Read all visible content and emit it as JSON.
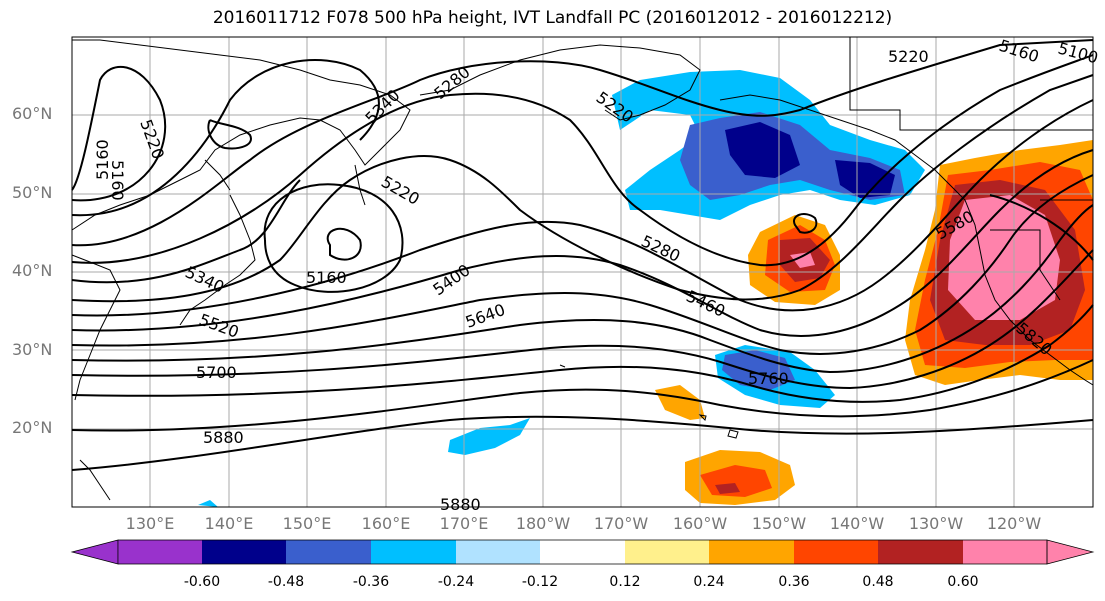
{
  "title": "2016011712 F078 500 hPa height, IVT Landfall PC (2016012012 - 2016012212)",
  "lat_labels": [
    "60°N",
    "50°N",
    "40°N",
    "30°N",
    "20°N"
  ],
  "lon_labels": [
    "130°E",
    "140°E",
    "150°E",
    "160°E",
    "170°E",
    "180°W",
    "170°W",
    "160°W",
    "150°W",
    "140°W",
    "130°W",
    "120°W"
  ],
  "contour_labels": [
    "5220",
    "5160",
    "5340",
    "5280",
    "5220",
    "5160",
    "5220",
    "5280",
    "5460",
    "5400",
    "5640",
    "5520",
    "5340",
    "5700",
    "5880",
    "5760",
    "5880",
    "5580",
    "5820",
    "5160",
    "5220",
    "5160",
    "5100"
  ],
  "colorbar": {
    "colors": [
      "#9932cc",
      "#00008b",
      "#3a5fcd",
      "#00bfff",
      "#b0e2ff",
      "#ffffff",
      "#fff08c",
      "#ffa500",
      "#ff4500",
      "#b22222",
      "#ff82ab"
    ],
    "tick_labels": [
      "-0.60",
      "-0.48",
      "-0.36",
      "-0.24",
      "-0.12",
      "0.12",
      "0.24",
      "0.36",
      "0.48",
      "0.60"
    ]
  }
}
